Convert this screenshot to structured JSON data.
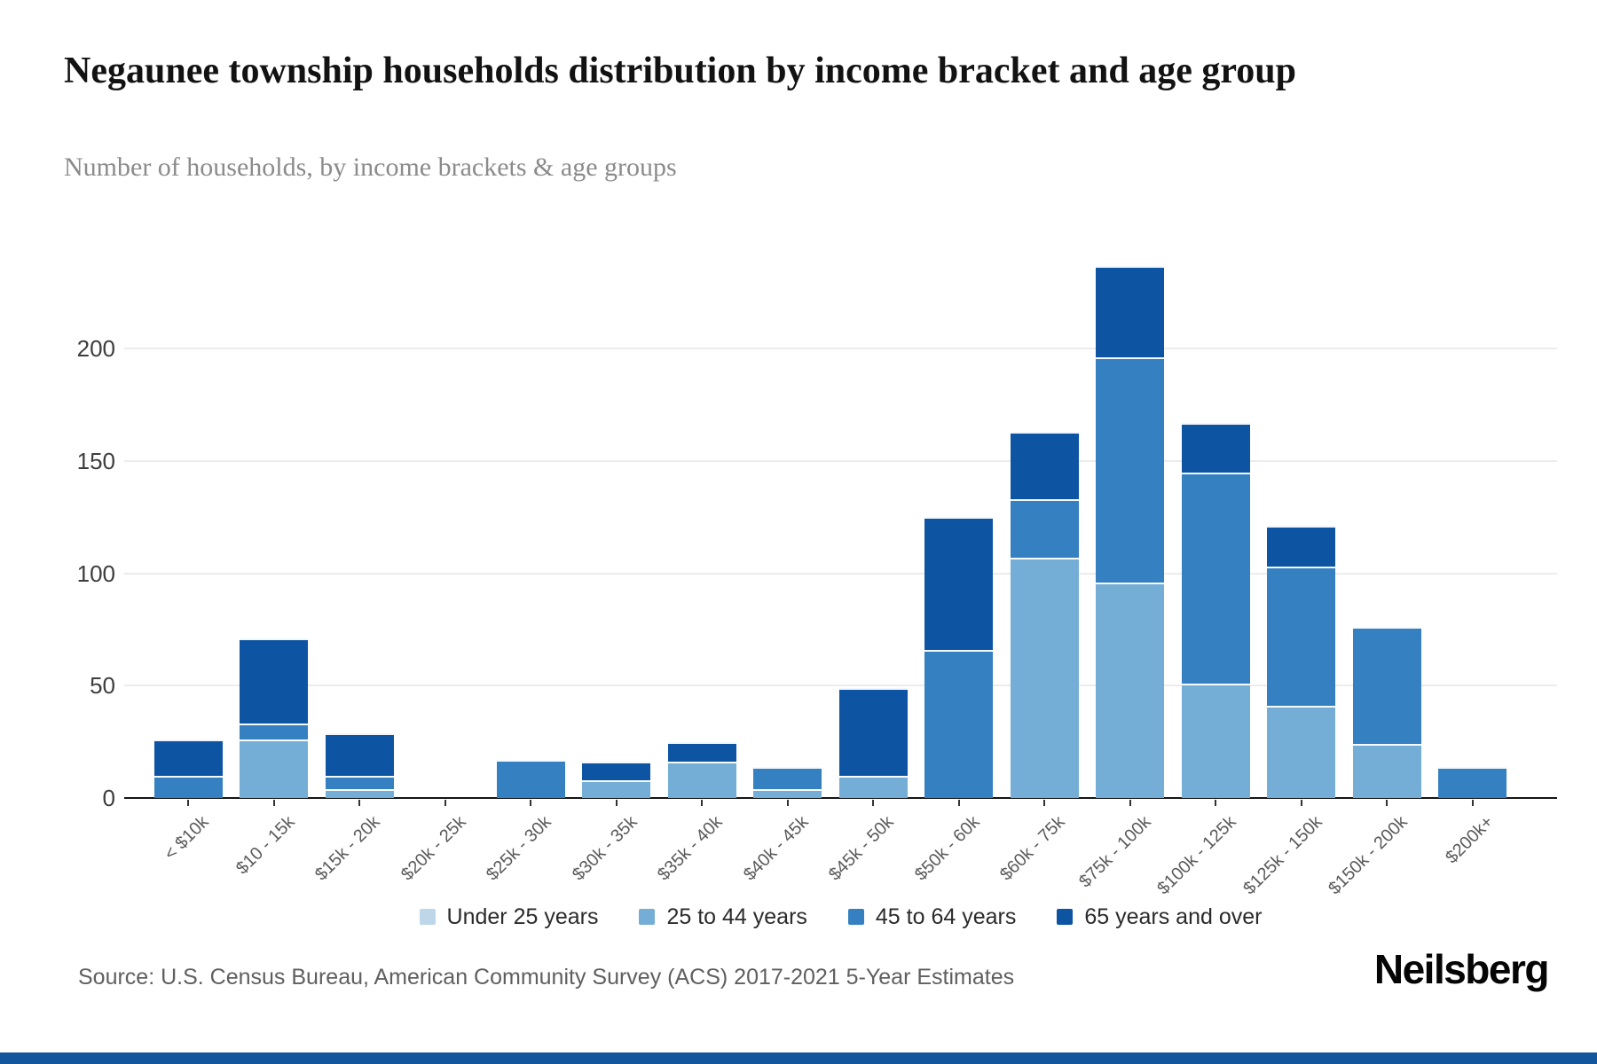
{
  "header": {
    "title": "Negaunee township households distribution by income bracket and age group",
    "subtitle": "Number of households, by income brackets & age groups"
  },
  "footer": {
    "source": "Source: U.S. Census Bureau, American Community Survey (ACS) 2017-2021 5-Year Estimates",
    "logo": "Neilsberg"
  },
  "chart_data": {
    "type": "bar",
    "stacked": true,
    "title": "Negaunee township households distribution by income bracket and age group",
    "xlabel": "",
    "ylabel": "Number of households",
    "categories": [
      "< $10k",
      "$10 - 15k",
      "$15k - 20k",
      "$20k - 25k",
      "$25k - 30k",
      "$30k - 35k",
      "$35k - 40k",
      "$40k - 45k",
      "$45k - 50k",
      "$50k - 60k",
      "$60k - 75k",
      "$75k - 100k",
      "$100k - 125k",
      "$125k - 150k",
      "$150k - 200k",
      "$200k+"
    ],
    "series": [
      {
        "name": "Under 25 years",
        "color": "#bdd7e9",
        "values": [
          0,
          0,
          0,
          0,
          0,
          0,
          0,
          0,
          0,
          0,
          0,
          0,
          0,
          0,
          0,
          0
        ]
      },
      {
        "name": "25 to 44 years",
        "color": "#74aed6",
        "values": [
          0,
          26,
          4,
          0,
          0,
          8,
          16,
          4,
          10,
          0,
          107,
          96,
          51,
          41,
          24,
          0
        ]
      },
      {
        "name": "45 to 64 years",
        "color": "#3480c0",
        "values": [
          10,
          7,
          6,
          0,
          17,
          0,
          0,
          10,
          0,
          66,
          26,
          100,
          94,
          62,
          52,
          14
        ]
      },
      {
        "name": "65 years and over",
        "color": "#0d55a3",
        "values": [
          16,
          38,
          19,
          0,
          0,
          8,
          9,
          0,
          39,
          59,
          30,
          41,
          22,
          18,
          0,
          0
        ]
      }
    ],
    "totals": [
      26,
      71,
      29,
      0,
      17,
      16,
      25,
      14,
      49,
      125,
      163,
      237,
      167,
      121,
      76,
      14
    ],
    "yticks": [
      0,
      50,
      100,
      150,
      200
    ],
    "ylim": [
      0,
      240
    ],
    "grid": true,
    "legend_position": "bottom"
  }
}
